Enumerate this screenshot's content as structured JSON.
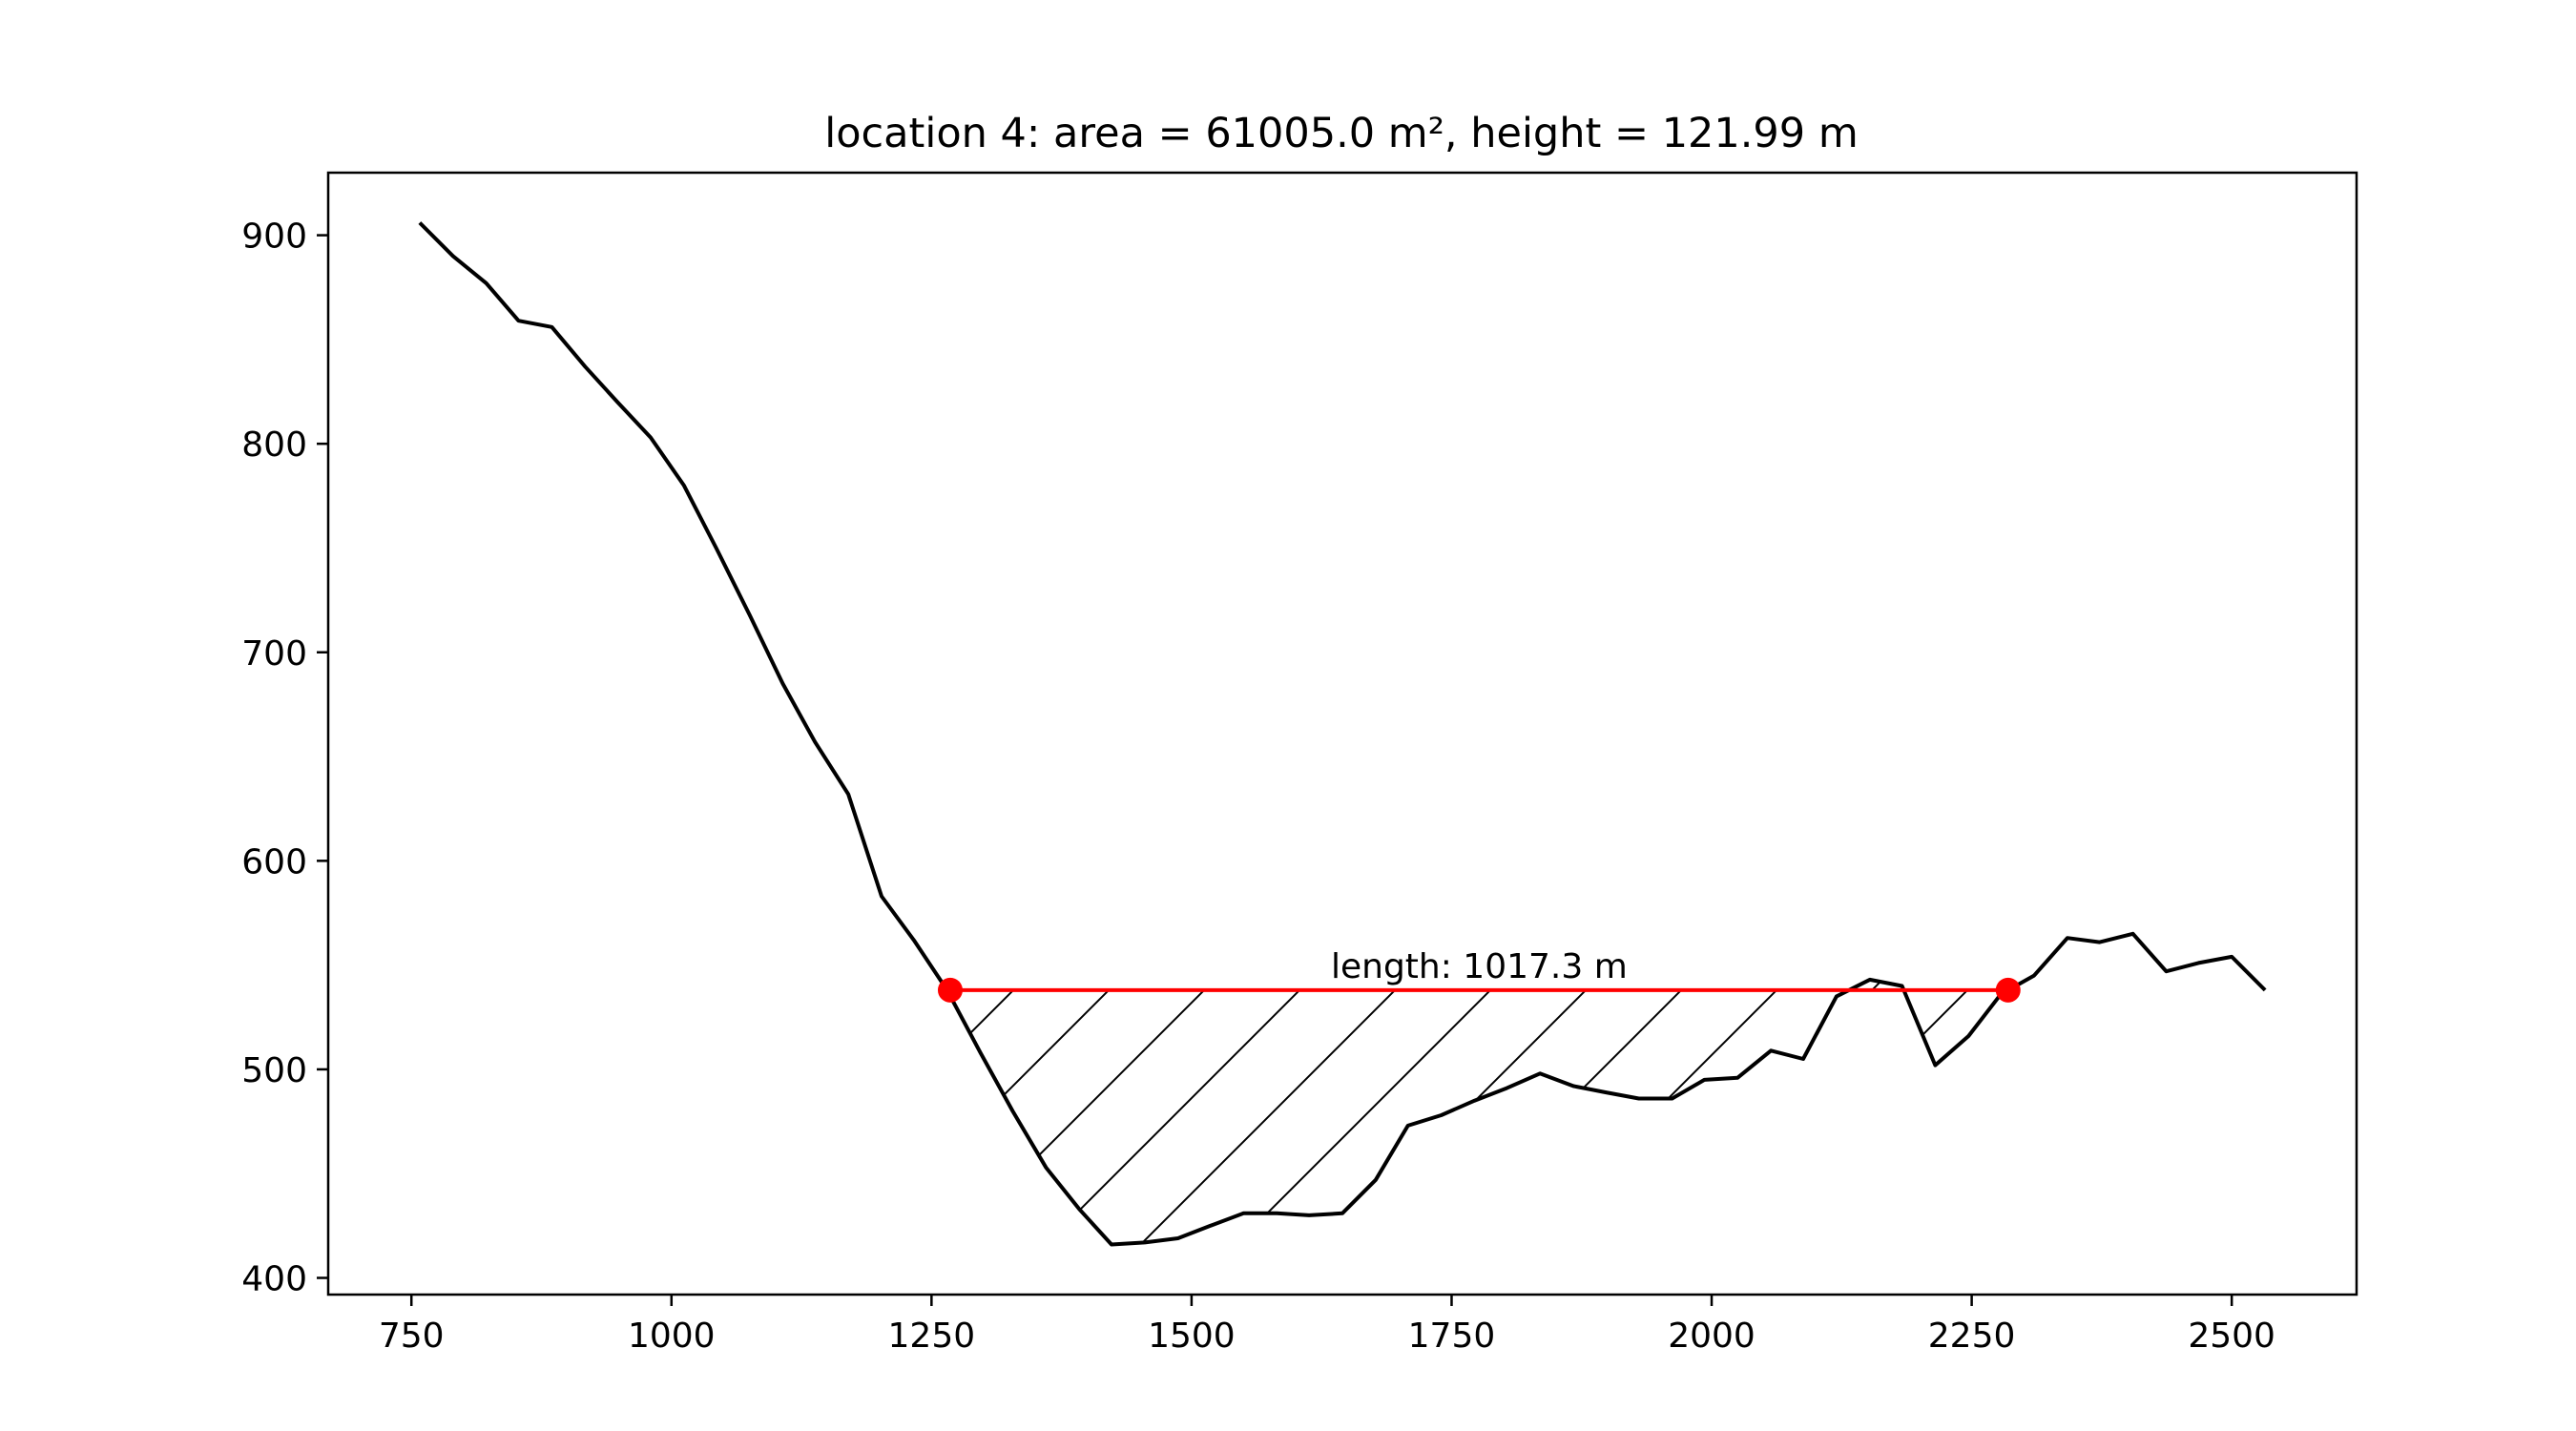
{
  "chart_data": {
    "type": "line",
    "title": "location 4: area = 61005.0 m², height = 121.99 m",
    "xlabel": "",
    "ylabel": "",
    "xlim": [
      670,
      2620
    ],
    "ylim": [
      392,
      930
    ],
    "xticks": [
      750,
      1000,
      1250,
      1500,
      1750,
      2000,
      2250,
      2500
    ],
    "yticks": [
      400,
      500,
      600,
      700,
      800,
      900
    ],
    "grid": false,
    "colors": {
      "profile": "#000000",
      "waterline": "#ff0000",
      "markers": "#ff0000",
      "hatch": "#000000"
    },
    "profile": {
      "x": [
        758,
        790,
        822,
        853,
        885,
        917,
        948,
        980,
        1012,
        1043,
        1075,
        1107,
        1138,
        1170,
        1202,
        1233,
        1265,
        1297,
        1328,
        1360,
        1392,
        1423,
        1455,
        1487,
        1518,
        1550,
        1582,
        1613,
        1645,
        1677,
        1708,
        1740,
        1772,
        1803,
        1835,
        1867,
        1898,
        1930,
        1962,
        1993,
        2025,
        2057,
        2088,
        2120,
        2152,
        2183,
        2215,
        2247,
        2278,
        2310,
        2342,
        2373,
        2405,
        2437,
        2468,
        2500,
        2532
      ],
      "y": [
        906,
        890,
        877,
        859,
        856,
        837,
        820,
        803,
        780,
        750,
        718,
        685,
        657,
        632,
        583,
        562,
        538,
        508,
        480,
        453,
        433,
        416,
        417,
        419,
        425,
        431,
        431,
        430,
        431,
        447,
        473,
        478,
        485,
        491,
        498,
        492,
        489,
        486,
        486,
        495,
        496,
        509,
        505,
        535,
        543,
        540,
        502,
        516,
        536,
        545,
        563,
        561,
        565,
        547,
        551,
        554,
        538
      ]
    },
    "waterline": {
      "x1": 1268,
      "x2": 2285,
      "y": 538
    },
    "annotation": "length: 1017.3 m"
  }
}
